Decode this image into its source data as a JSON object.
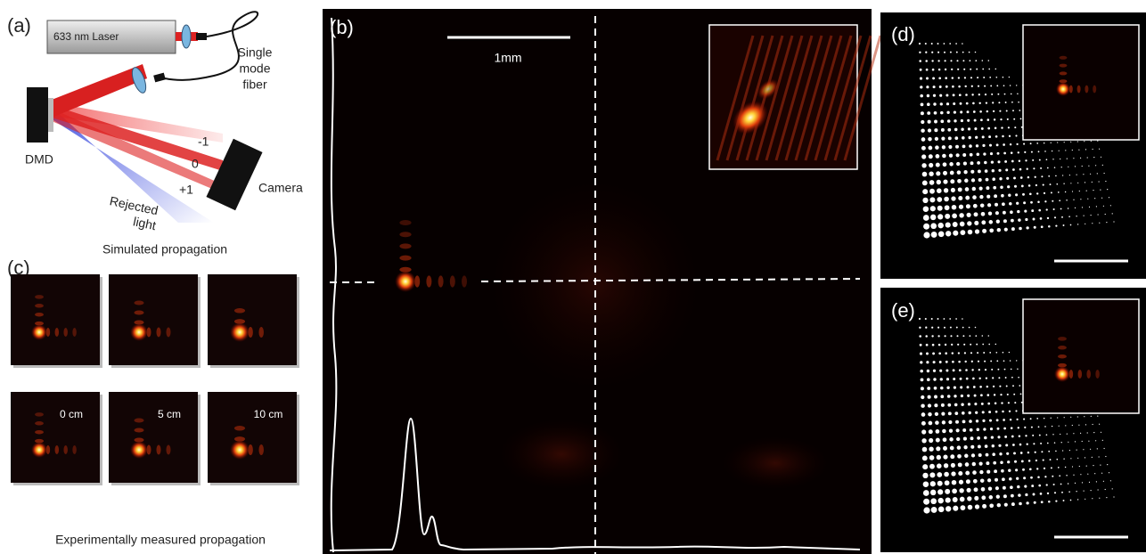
{
  "panels": {
    "a": {
      "label": "(a)",
      "laser": "633 nm Laser",
      "fiber": [
        "Single",
        "mode",
        "fiber"
      ],
      "dmd": "DMD",
      "orders": [
        "-1",
        "0",
        "+1"
      ],
      "camera": "Camera",
      "rejected": [
        "Rejected",
        "light"
      ]
    },
    "b": {
      "label": "(b)",
      "scale": "1mm"
    },
    "c": {
      "label": "(c)",
      "top": "Simulated propagation",
      "distances": [
        "0 cm",
        "5 cm",
        "10 cm"
      ],
      "bottom": "Experimentally measured propagation"
    },
    "d": {
      "label": "(d)"
    },
    "e": {
      "label": "(e)"
    }
  }
}
